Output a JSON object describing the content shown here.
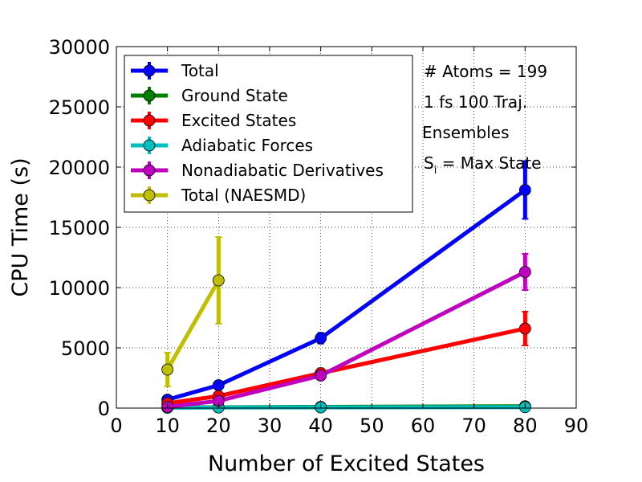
{
  "chart_data": {
    "type": "line",
    "xlabel": "Number of Excited States",
    "ylabel": "CPU Time (s)",
    "xlim": [
      0,
      90
    ],
    "ylim": [
      0,
      30000
    ],
    "xticks": [
      0,
      10,
      20,
      30,
      40,
      50,
      60,
      70,
      80,
      90
    ],
    "yticks": [
      0,
      5000,
      10000,
      15000,
      20000,
      25000,
      30000
    ],
    "grid": true,
    "legend_position": "upper-left",
    "series": [
      {
        "name": "Total",
        "color": "#0000ff",
        "x": [
          10,
          20,
          40,
          80
        ],
        "y": [
          700,
          1900,
          5800,
          18100
        ],
        "err": [
          150,
          250,
          450,
          2400
        ]
      },
      {
        "name": "Ground State",
        "color": "#008000",
        "x": [
          10,
          20,
          40,
          80
        ],
        "y": [
          50,
          70,
          100,
          150
        ],
        "err": [
          0,
          0,
          0,
          0
        ]
      },
      {
        "name": "Excited States",
        "color": "#ff0000",
        "x": [
          10,
          20,
          40,
          80
        ],
        "y": [
          400,
          1000,
          2900,
          6600
        ],
        "err": [
          100,
          200,
          400,
          1400
        ]
      },
      {
        "name": "Adiabatic Forces",
        "color": "#00bfbf",
        "x": [
          10,
          20,
          40,
          80
        ],
        "y": [
          30,
          50,
          60,
          80
        ],
        "err": [
          0,
          0,
          0,
          0
        ]
      },
      {
        "name": "Nonadiabatic Derivatives",
        "color": "#bf00bf",
        "x": [
          10,
          20,
          40,
          80
        ],
        "y": [
          100,
          600,
          2700,
          11300
        ],
        "err": [
          50,
          200,
          350,
          1500
        ]
      },
      {
        "name": "Total (NAESMD)",
        "color": "#bfbf00",
        "x": [
          10,
          20
        ],
        "y": [
          3200,
          10600
        ],
        "err": [
          1400,
          3600
        ]
      }
    ],
    "annotations": [
      "# Atoms = 199",
      "1 fs 100 Traj.",
      "Ensembles",
      "S",
      "i",
      " = Max State"
    ]
  }
}
